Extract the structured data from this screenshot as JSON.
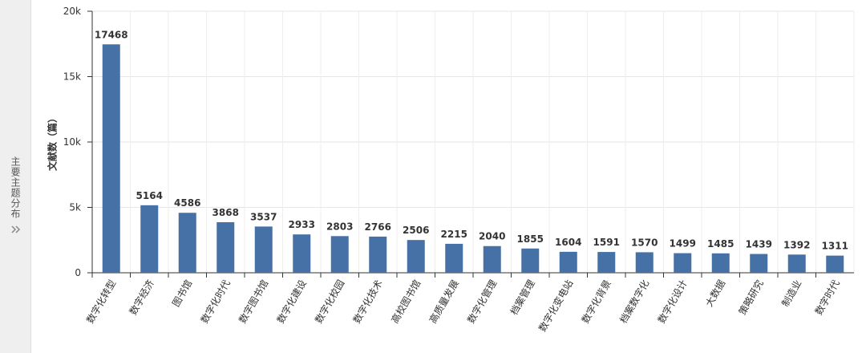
{
  "sidebar": {
    "title": "主要主题分布"
  },
  "chart_data": {
    "type": "bar",
    "y_label": "文献数（篇）",
    "categories": [
      "数字化转型",
      "数字经济",
      "图书馆",
      "数字化时代",
      "数字图书馆",
      "数字化建设",
      "数字化校园",
      "数字化技术",
      "高校图书馆",
      "高质量发展",
      "数字化管理",
      "档案管理",
      "数字化变电站",
      "数字化背景",
      "档案数字化",
      "数字化设计",
      "大数据",
      "策略研究",
      "制造业",
      "数字时代"
    ],
    "values": [
      17468,
      5164,
      4586,
      3868,
      3537,
      2933,
      2803,
      2766,
      2506,
      2215,
      2040,
      1855,
      1604,
      1591,
      1570,
      1499,
      1485,
      1439,
      1392,
      1311
    ],
    "color": "#4671a6",
    "ylim": [
      0,
      20000
    ],
    "yticks": [
      0,
      {
        "value": 5000,
        "label": "5k"
      },
      {
        "value": 10000,
        "label": "10k"
      },
      {
        "value": 15000,
        "label": "15k"
      },
      {
        "value": 20000,
        "label": "20k"
      }
    ],
    "grid": true
  }
}
